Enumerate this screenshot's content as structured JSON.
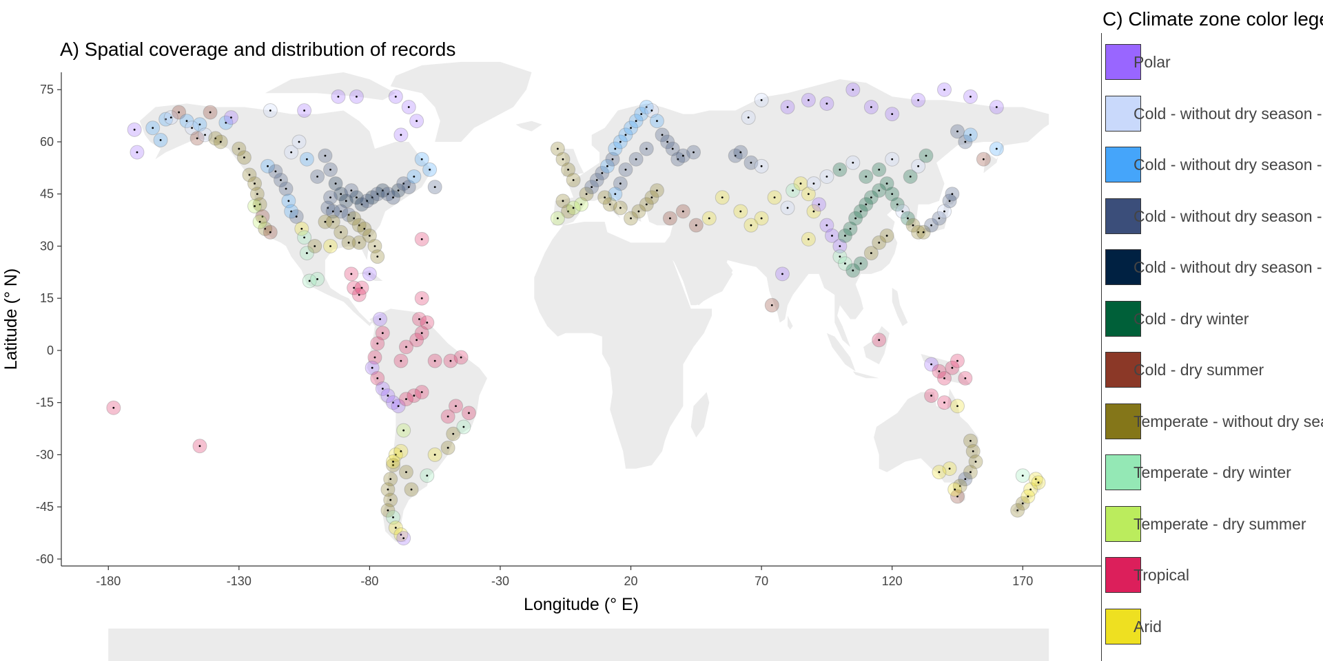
{
  "map": {
    "title": "A) Spatial coverage and distribution of records"
  },
  "legend": {
    "title": "C) Climate zone color legend",
    "items": [
      {
        "label": "Polar",
        "color": "#9966ff"
      },
      {
        "label": "Cold - without dry season - hot summer",
        "color": "#c9d9fb"
      },
      {
        "label": "Cold - without dry season - warm summer",
        "color": "#45a5fa"
      },
      {
        "label": "Cold - without dry season - cold summer",
        "color": "#3b4e7a"
      },
      {
        "label": "Cold - without dry season - very cold winter",
        "color": "#002142"
      },
      {
        "label": "Cold - dry winter",
        "color": "#006039"
      },
      {
        "label": "Cold - dry summer",
        "color": "#8b3827"
      },
      {
        "label": "Temperate - without dry season",
        "color": "#847619"
      },
      {
        "label": "Temperate - dry winter",
        "color": "#94e8b5"
      },
      {
        "label": "Temperate - dry summer",
        "color": "#bbec5d"
      },
      {
        "label": "Tropical",
        "color": "#dc1f5b"
      },
      {
        "label": "Arid",
        "color": "#eee021"
      }
    ]
  },
  "chart_data": {
    "type": "scatter",
    "title": "A) Spatial coverage and distribution of records",
    "xlabel": "Longitude (° E)",
    "ylabel": "Latitude (° N)",
    "xlim": [
      -198,
      200
    ],
    "ylim": [
      -62,
      80
    ],
    "x_ticks": [
      -180,
      -130,
      -80,
      -30,
      20,
      70,
      120,
      170
    ],
    "y_ticks": [
      75,
      60,
      45,
      30,
      15,
      0,
      -15,
      -30,
      -45,
      -60
    ],
    "grid": false,
    "legend_position": "right",
    "zones": [
      "Polar",
      "Cold - without dry season - hot summer",
      "Cold - without dry season - warm summer",
      "Cold - without dry season - cold summer",
      "Cold - without dry season - very cold winter",
      "Cold - dry winter",
      "Cold - dry summer",
      "Temperate - without dry season",
      "Temperate - dry winter",
      "Temperate - dry summer",
      "Tropical",
      "Arid"
    ],
    "points": [
      [
        -178,
        -16.5,
        10
      ],
      [
        -145,
        -27.5,
        10
      ],
      [
        -170,
        63.5,
        0
      ],
      [
        -169,
        57,
        0
      ],
      [
        -163,
        64,
        2
      ],
      [
        -160,
        60.5,
        2
      ],
      [
        -158,
        66.5,
        2
      ],
      [
        -156,
        67,
        1
      ],
      [
        -153,
        68.5,
        6
      ],
      [
        -150,
        66,
        2
      ],
      [
        -148,
        64,
        1
      ],
      [
        -146,
        61,
        6
      ],
      [
        -145,
        65,
        2
      ],
      [
        -143,
        62,
        1
      ],
      [
        -141,
        68.5,
        6
      ],
      [
        -139,
        61,
        7
      ],
      [
        -137,
        60,
        7
      ],
      [
        -135,
        65.5,
        2
      ],
      [
        -133,
        67,
        0
      ],
      [
        -130,
        58,
        7
      ],
      [
        -128,
        55.5,
        7
      ],
      [
        -126,
        50.5,
        7
      ],
      [
        -124,
        48,
        7
      ],
      [
        -123,
        45,
        7
      ],
      [
        -122,
        42,
        7
      ],
      [
        -121,
        38.5,
        6
      ],
      [
        -120,
        35,
        7
      ],
      [
        -118,
        34,
        6
      ],
      [
        -124,
        41.5,
        9
      ],
      [
        -122,
        37,
        9
      ],
      [
        -119,
        53,
        2
      ],
      [
        -116,
        51.5,
        3
      ],
      [
        -114,
        49,
        3
      ],
      [
        -112,
        46.5,
        3
      ],
      [
        -111,
        43,
        2
      ],
      [
        -110,
        40,
        2
      ],
      [
        -108,
        38.5,
        3
      ],
      [
        -106,
        35,
        11
      ],
      [
        -105,
        32.5,
        8
      ],
      [
        -104,
        28,
        8
      ],
      [
        -103,
        20,
        8
      ],
      [
        -100,
        20.5,
        8
      ],
      [
        -110,
        57,
        1
      ],
      [
        -107,
        60,
        1
      ],
      [
        -104,
        55,
        2
      ],
      [
        -100,
        50,
        3
      ],
      [
        -97,
        56,
        3
      ],
      [
        -95,
        52,
        3
      ],
      [
        -93,
        48,
        4
      ],
      [
        -91,
        45,
        4
      ],
      [
        -89,
        43,
        4
      ],
      [
        -87,
        46,
        3
      ],
      [
        -85,
        44,
        4
      ],
      [
        -83,
        42,
        4
      ],
      [
        -81,
        43,
        3
      ],
      [
        -79,
        44,
        4
      ],
      [
        -77,
        45,
        3
      ],
      [
        -75,
        46,
        4
      ],
      [
        -73,
        45,
        3
      ],
      [
        -71,
        44,
        3
      ],
      [
        -69,
        46,
        4
      ],
      [
        -67,
        48,
        3
      ],
      [
        -65,
        47,
        3
      ],
      [
        -95,
        44,
        3
      ],
      [
        -96,
        41,
        3
      ],
      [
        -94,
        40,
        3
      ],
      [
        -91,
        40,
        3
      ],
      [
        -88,
        39,
        3
      ],
      [
        -86,
        38,
        7
      ],
      [
        -84,
        36,
        7
      ],
      [
        -82,
        35,
        7
      ],
      [
        -80,
        33,
        7
      ],
      [
        -78,
        30,
        7
      ],
      [
        -77,
        27,
        7
      ],
      [
        -84,
        31,
        7
      ],
      [
        -88,
        31,
        7
      ],
      [
        -91,
        34,
        7
      ],
      [
        -94,
        37,
        7
      ],
      [
        -97,
        37,
        7
      ],
      [
        -101,
        30,
        7
      ],
      [
        -95,
        30,
        11
      ],
      [
        -87,
        22,
        10
      ],
      [
        -86,
        18,
        10
      ],
      [
        -84,
        16,
        10
      ],
      [
        -83,
        18,
        10
      ],
      [
        -80,
        22,
        0
      ],
      [
        -60,
        32,
        10
      ],
      [
        -60,
        55,
        2
      ],
      [
        -57,
        52,
        2
      ],
      [
        -55,
        47,
        3
      ],
      [
        -63,
        50,
        2
      ],
      [
        -68,
        62,
        0
      ],
      [
        -62,
        66,
        0
      ],
      [
        -65,
        70,
        0
      ],
      [
        -70,
        73,
        0
      ],
      [
        -85,
        73,
        0
      ],
      [
        -92,
        73,
        0
      ],
      [
        -105,
        69,
        0
      ],
      [
        -118,
        69,
        1
      ],
      [
        -76,
        9,
        0
      ],
      [
        -75,
        5,
        10
      ],
      [
        -77,
        2,
        10
      ],
      [
        -78,
        -2,
        10
      ],
      [
        -79,
        -5,
        0
      ],
      [
        -77,
        -8,
        10
      ],
      [
        -75,
        -11,
        0
      ],
      [
        -73,
        -13,
        0
      ],
      [
        -71,
        -15,
        0
      ],
      [
        -69,
        -16,
        0
      ],
      [
        -66,
        -14,
        10
      ],
      [
        -63,
        -13,
        10
      ],
      [
        -60,
        -12,
        10
      ],
      [
        -67,
        -23,
        9
      ],
      [
        -70,
        -30,
        11
      ],
      [
        -71,
        -33,
        7
      ],
      [
        -72,
        -37,
        7
      ],
      [
        -73,
        -40,
        7
      ],
      [
        -72,
        -43,
        7
      ],
      [
        -73,
        -46,
        7
      ],
      [
        -71,
        -48,
        8
      ],
      [
        -70,
        -51,
        11
      ],
      [
        -68,
        -53,
        11
      ],
      [
        -67,
        -54,
        0
      ],
      [
        -71,
        -32,
        11
      ],
      [
        -68,
        -29,
        11
      ],
      [
        -66,
        -35,
        7
      ],
      [
        -64,
        -40,
        7
      ],
      [
        -58,
        -36,
        8
      ],
      [
        -55,
        -30,
        11
      ],
      [
        -50,
        -28,
        7
      ],
      [
        -48,
        -24,
        7
      ],
      [
        -44,
        -22,
        8
      ],
      [
        -42,
        -18,
        10
      ],
      [
        -47,
        -16,
        10
      ],
      [
        -50,
        -19,
        10
      ],
      [
        -45,
        -2,
        10
      ],
      [
        -49,
        -3,
        10
      ],
      [
        -55,
        -3,
        10
      ],
      [
        -60,
        5,
        10
      ],
      [
        -61,
        9,
        10
      ],
      [
        -60,
        15,
        10
      ],
      [
        -62,
        3,
        10
      ],
      [
        -66,
        1,
        10
      ],
      [
        -68,
        -3,
        10
      ],
      [
        -58,
        8,
        10
      ],
      [
        -8,
        58,
        7
      ],
      [
        -6,
        55,
        7
      ],
      [
        -4,
        52,
        7
      ],
      [
        -2,
        49,
        7
      ],
      [
        -6,
        43,
        7
      ],
      [
        -4,
        40,
        7
      ],
      [
        -8,
        38,
        9
      ],
      [
        -2,
        41,
        9
      ],
      [
        1,
        42,
        9
      ],
      [
        3,
        45,
        7
      ],
      [
        5,
        47,
        3
      ],
      [
        7,
        49,
        3
      ],
      [
        9,
        51,
        3
      ],
      [
        11,
        53,
        2
      ],
      [
        13,
        55,
        3
      ],
      [
        14,
        58,
        2
      ],
      [
        16,
        60,
        2
      ],
      [
        18,
        62,
        2
      ],
      [
        20,
        64,
        2
      ],
      [
        22,
        66,
        2
      ],
      [
        24,
        68,
        2
      ],
      [
        26,
        70,
        2
      ],
      [
        28,
        69,
        1
      ],
      [
        30,
        66,
        2
      ],
      [
        32,
        62,
        3
      ],
      [
        34,
        60,
        3
      ],
      [
        36,
        58,
        3
      ],
      [
        38,
        55,
        3
      ],
      [
        40,
        56,
        3
      ],
      [
        44,
        57,
        3
      ],
      [
        26,
        58,
        3
      ],
      [
        22,
        55,
        3
      ],
      [
        18,
        52,
        3
      ],
      [
        16,
        48,
        3
      ],
      [
        14,
        45,
        2
      ],
      [
        12,
        42,
        7
      ],
      [
        10,
        44,
        7
      ],
      [
        16,
        41,
        7
      ],
      [
        20,
        38,
        7
      ],
      [
        23,
        40,
        7
      ],
      [
        26,
        42,
        7
      ],
      [
        28,
        44,
        7
      ],
      [
        30,
        46,
        7
      ],
      [
        35,
        38,
        6
      ],
      [
        40,
        40,
        6
      ],
      [
        45,
        36,
        6
      ],
      [
        50,
        38,
        11
      ],
      [
        55,
        44,
        11
      ],
      [
        60,
        56,
        3
      ],
      [
        62,
        57,
        3
      ],
      [
        66,
        54,
        3
      ],
      [
        70,
        53,
        1
      ],
      [
        65,
        67,
        1
      ],
      [
        70,
        72,
        1
      ],
      [
        80,
        70,
        0
      ],
      [
        88,
        72,
        0
      ],
      [
        95,
        71,
        0
      ],
      [
        105,
        75,
        0
      ],
      [
        112,
        70,
        0
      ],
      [
        120,
        68,
        0
      ],
      [
        130,
        72,
        0
      ],
      [
        140,
        75,
        0
      ],
      [
        150,
        73,
        0
      ],
      [
        160,
        70,
        0
      ],
      [
        145,
        63,
        3
      ],
      [
        148,
        60,
        3
      ],
      [
        150,
        62,
        2
      ],
      [
        155,
        55,
        6
      ],
      [
        160,
        58,
        2
      ],
      [
        75,
        44,
        11
      ],
      [
        80,
        41,
        1
      ],
      [
        82,
        46,
        8
      ],
      [
        85,
        48,
        11
      ],
      [
        88,
        45,
        11
      ],
      [
        90,
        40,
        11
      ],
      [
        92,
        42,
        0
      ],
      [
        95,
        36,
        0
      ],
      [
        97,
        33,
        0
      ],
      [
        100,
        30,
        0
      ],
      [
        102,
        33,
        5
      ],
      [
        104,
        35,
        5
      ],
      [
        106,
        38,
        5
      ],
      [
        108,
        40,
        5
      ],
      [
        110,
        42,
        5
      ],
      [
        112,
        44,
        5
      ],
      [
        115,
        46,
        5
      ],
      [
        118,
        48,
        5
      ],
      [
        120,
        45,
        5
      ],
      [
        122,
        42,
        5
      ],
      [
        124,
        40,
        1
      ],
      [
        126,
        38,
        5
      ],
      [
        128,
        36,
        7
      ],
      [
        130,
        34,
        7
      ],
      [
        132,
        34,
        7
      ],
      [
        135,
        36,
        3
      ],
      [
        138,
        38,
        3
      ],
      [
        140,
        40,
        1
      ],
      [
        142,
        43,
        3
      ],
      [
        143,
        45,
        3
      ],
      [
        127,
        50,
        5
      ],
      [
        130,
        53,
        1
      ],
      [
        133,
        56,
        5
      ],
      [
        120,
        55,
        1
      ],
      [
        115,
        52,
        5
      ],
      [
        110,
        50,
        5
      ],
      [
        105,
        54,
        1
      ],
      [
        100,
        52,
        5
      ],
      [
        95,
        50,
        1
      ],
      [
        90,
        48,
        1
      ],
      [
        100,
        27,
        8
      ],
      [
        102,
        25,
        8
      ],
      [
        105,
        23,
        5
      ],
      [
        108,
        25,
        5
      ],
      [
        112,
        28,
        7
      ],
      [
        115,
        31,
        7
      ],
      [
        118,
        33,
        7
      ],
      [
        74,
        13,
        6
      ],
      [
        78,
        22,
        0
      ],
      [
        88,
        32,
        11
      ],
      [
        70,
        38,
        11
      ],
      [
        62,
        40,
        11
      ],
      [
        66,
        36,
        11
      ],
      [
        115,
        3,
        10
      ],
      [
        135,
        -4,
        0
      ],
      [
        138,
        -6,
        10
      ],
      [
        140,
        -8,
        10
      ],
      [
        143,
        -5,
        10
      ],
      [
        145,
        -3,
        10
      ],
      [
        148,
        -8,
        10
      ],
      [
        135,
        -13,
        10
      ],
      [
        140,
        -15,
        10
      ],
      [
        145,
        -16,
        11
      ],
      [
        150,
        -26,
        7
      ],
      [
        151,
        -29,
        7
      ],
      [
        152,
        -32,
        7
      ],
      [
        150,
        -35,
        7
      ],
      [
        148,
        -37,
        3
      ],
      [
        146,
        -39,
        7
      ],
      [
        145,
        -42,
        6
      ],
      [
        144,
        -40,
        11
      ],
      [
        142,
        -34,
        11
      ],
      [
        138,
        -35,
        11
      ],
      [
        170,
        -36,
        8
      ],
      [
        173,
        -40,
        11
      ],
      [
        175,
        -37,
        11
      ],
      [
        168,
        -46,
        7
      ],
      [
        170,
        -44,
        7
      ],
      [
        172,
        -42,
        11
      ],
      [
        176,
        -38,
        11
      ]
    ]
  }
}
